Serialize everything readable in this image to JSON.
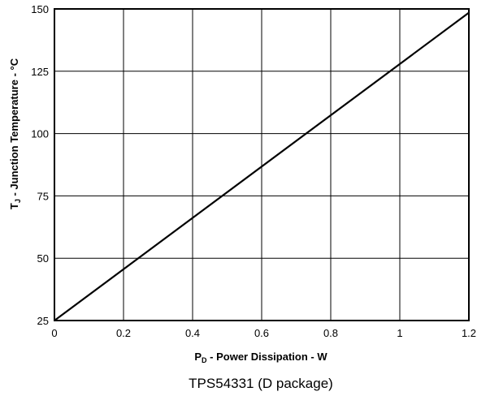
{
  "chart_data": {
    "type": "line",
    "xlabel": {
      "main": "P",
      "sub": "D",
      "rest": " -  Power Dissipation - W"
    },
    "ylabel": {
      "main": "T",
      "sub": "J",
      "rest": " - Junction Temperature - °C"
    },
    "caption": "TPS54331 (D package)",
    "xlim": [
      0,
      1.2
    ],
    "ylim": [
      25,
      150
    ],
    "x_ticks": [
      "0",
      "0.2",
      "0.4",
      "0.6",
      "0.8",
      "1",
      "1.2"
    ],
    "y_ticks": [
      "25",
      "50",
      "75",
      "100",
      "125",
      "150"
    ],
    "grid": true,
    "series": [
      {
        "x": [
          0,
          1.2
        ],
        "y": [
          25,
          148.5
        ]
      }
    ],
    "colors": {
      "line": "#000000",
      "grid": "#000000",
      "frame": "#000000"
    }
  }
}
